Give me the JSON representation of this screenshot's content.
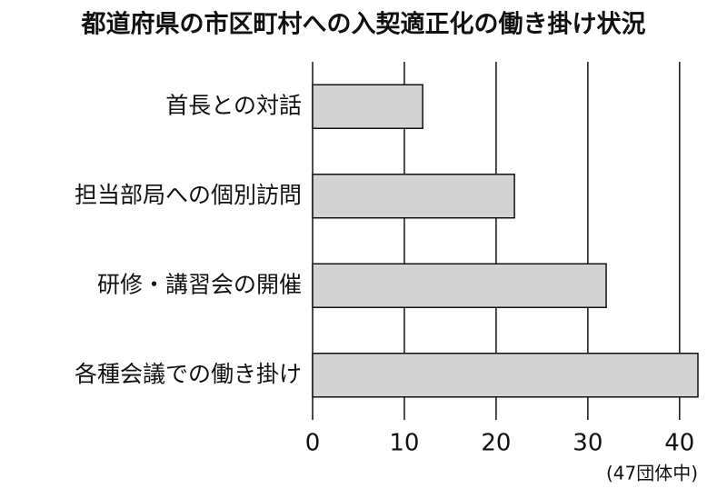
{
  "chart_data": {
    "type": "bar",
    "orientation": "horizontal",
    "title": "都道府県の市区町村への入契適正化の働き掛け状況",
    "note": "(47団体中)",
    "categories": [
      "首長との対話",
      "担当部局への個別訪問",
      "研修・講習会の開催",
      "各種会議での働き掛け"
    ],
    "values": [
      12,
      22,
      32,
      42
    ],
    "color": "#d3d3d3",
    "xlim": [
      0,
      42
    ],
    "xticks": [
      0,
      10,
      20,
      30,
      40
    ],
    "grid": true
  }
}
